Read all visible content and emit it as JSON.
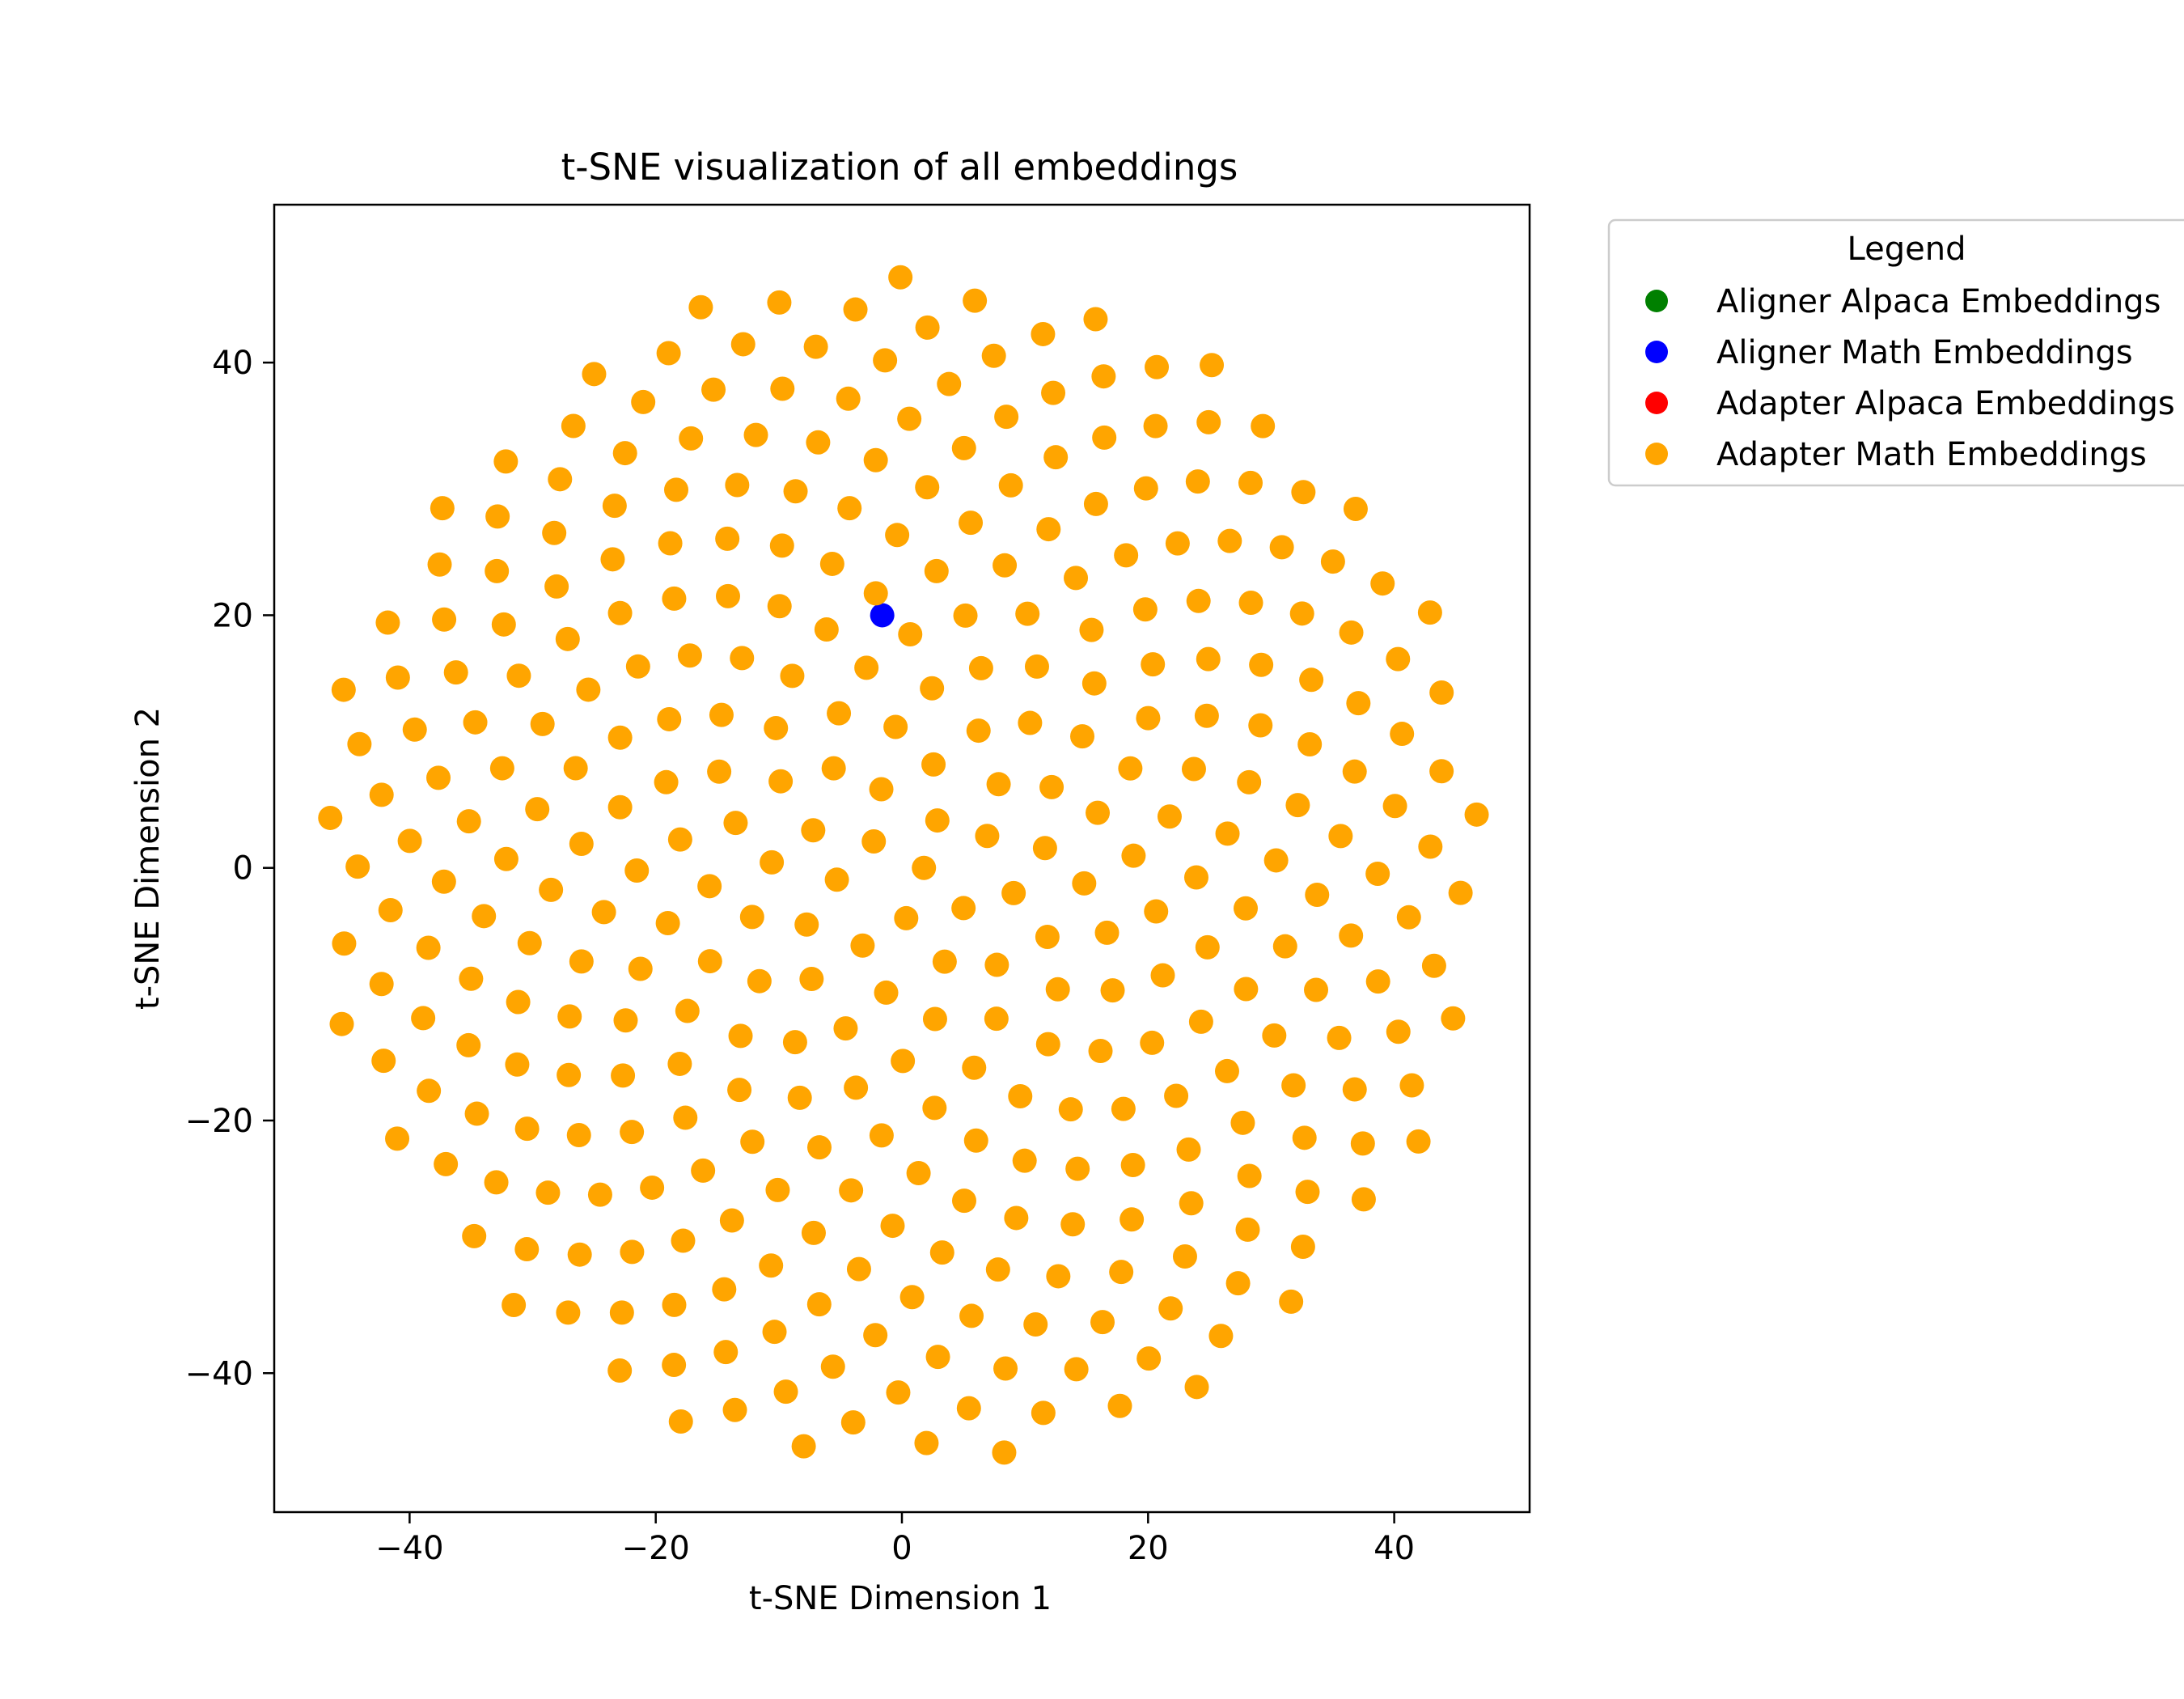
{
  "chart_data": {
    "type": "scatter",
    "title": "t-SNE visualization of all embeddings",
    "xlabel": "t-SNE Dimension 1",
    "ylabel": "t-SNE Dimension 2",
    "xlim": [
      -51,
      51
    ],
    "ylim": [
      -51,
      52.5
    ],
    "xticks": [
      -40,
      -20,
      0,
      20,
      40
    ],
    "yticks": [
      -40,
      -20,
      0,
      20,
      40
    ],
    "xtick_labels": [
      "−40",
      "−20",
      "0",
      "20",
      "40"
    ],
    "ytick_labels": [
      "−40",
      "−20",
      "0",
      "20",
      "40"
    ],
    "grid": false,
    "legend": {
      "title": "Legend",
      "placement": "outside-top-right",
      "entries": [
        {
          "label": "Aligner Alpaca Embeddings",
          "color": "#008000"
        },
        {
          "label": "Aligner Math Embeddings",
          "color": "#0000ff"
        },
        {
          "label": "Adapter Alpaca Embeddings",
          "color": "#ff0000"
        },
        {
          "label": "Adapter Math Embeddings",
          "color": "#ffa500"
        }
      ]
    },
    "series": [
      {
        "name": "Aligner Alpaca Embeddings",
        "color": "#008000",
        "x": [],
        "y": []
      },
      {
        "name": "Aligner Math Embeddings",
        "color": "#0000ff",
        "x": [
          -1.6
        ],
        "y": [
          20
        ]
      },
      {
        "name": "Adapter Alpaca Embeddings",
        "color": "#ff0000",
        "x": [],
        "y": [],
        "note_hidden": true
      },
      {
        "name": "Adapter Math Embeddings",
        "color": "#ffa500",
        "pattern": "phyllotaxis",
        "count": 354,
        "center": [
          0,
          0
        ],
        "max_radius": 47.6
      }
    ]
  }
}
